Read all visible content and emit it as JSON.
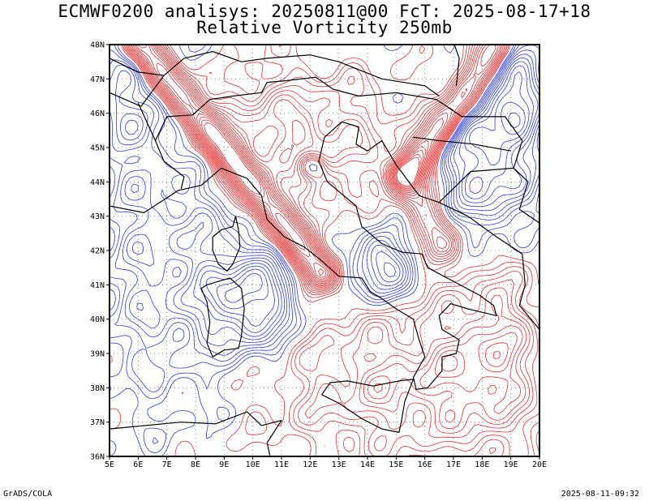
{
  "title_line1": "ECMWF0200 analisys: 20250811@00 FcT: 2025-08-17+18",
  "title_line2": "Relative Vorticity 250mb",
  "lat_labels": [
    "48N",
    "47N",
    "46N",
    "45N",
    "44N",
    "43N",
    "42N",
    "41N",
    "40N",
    "39N",
    "38N",
    "37N",
    "36N"
  ],
  "lon_labels": [
    "5E",
    "6E",
    "7E",
    "8E",
    "9E",
    "10E",
    "11E",
    "12E",
    "13E",
    "14E",
    "15E",
    "16E",
    "17E",
    "18E",
    "19E",
    "20E"
  ],
  "footer_left": "GrADS/COLA",
  "footer_right": "2025-08-11-09:32",
  "colors": {
    "positive": "#e83030",
    "negative": "#2a3cf0",
    "coast": "#000000",
    "grid": "#888888"
  }
}
